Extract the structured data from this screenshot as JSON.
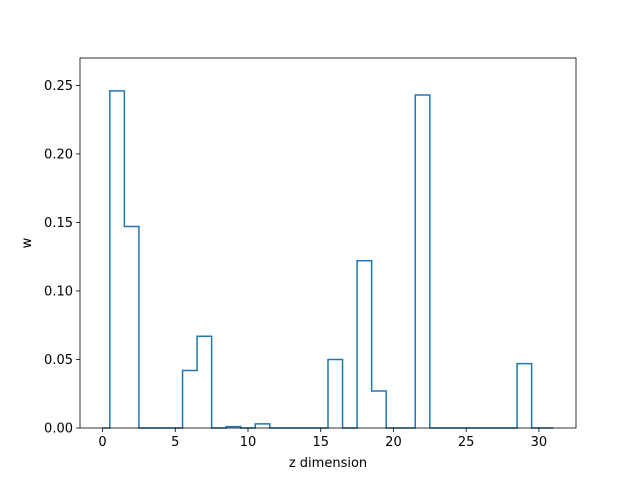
{
  "chart_data": {
    "type": "step",
    "xlabel": "z dimension",
    "ylabel": "w",
    "xlim": [
      -1.55,
      32.55
    ],
    "ylim": [
      0,
      0.27
    ],
    "x_ticks": [
      0,
      5,
      10,
      15,
      20,
      25,
      30
    ],
    "y_ticks": [
      0.0,
      0.05,
      0.1,
      0.15,
      0.2,
      0.25
    ],
    "x_tick_labels": [
      "0",
      "5",
      "10",
      "15",
      "20",
      "25",
      "30"
    ],
    "y_tick_labels": [
      "0.00",
      "0.05",
      "0.10",
      "0.15",
      "0.20",
      "0.25"
    ],
    "line_color": "#1f77b4",
    "grid": false,
    "x": [
      0,
      1,
      2,
      3,
      4,
      5,
      6,
      7,
      8,
      9,
      10,
      11,
      12,
      13,
      14,
      15,
      16,
      17,
      18,
      19,
      20,
      21,
      22,
      23,
      24,
      25,
      26,
      27,
      28,
      29,
      30,
      31
    ],
    "values": [
      0,
      0.246,
      0.147,
      0,
      0,
      0,
      0.042,
      0.067,
      0,
      0.001,
      0,
      0.003,
      0,
      0,
      0,
      0,
      0.05,
      0,
      0.122,
      0.027,
      0,
      0,
      0.243,
      0,
      0,
      0,
      0,
      0,
      0,
      0.047,
      0,
      0
    ]
  }
}
